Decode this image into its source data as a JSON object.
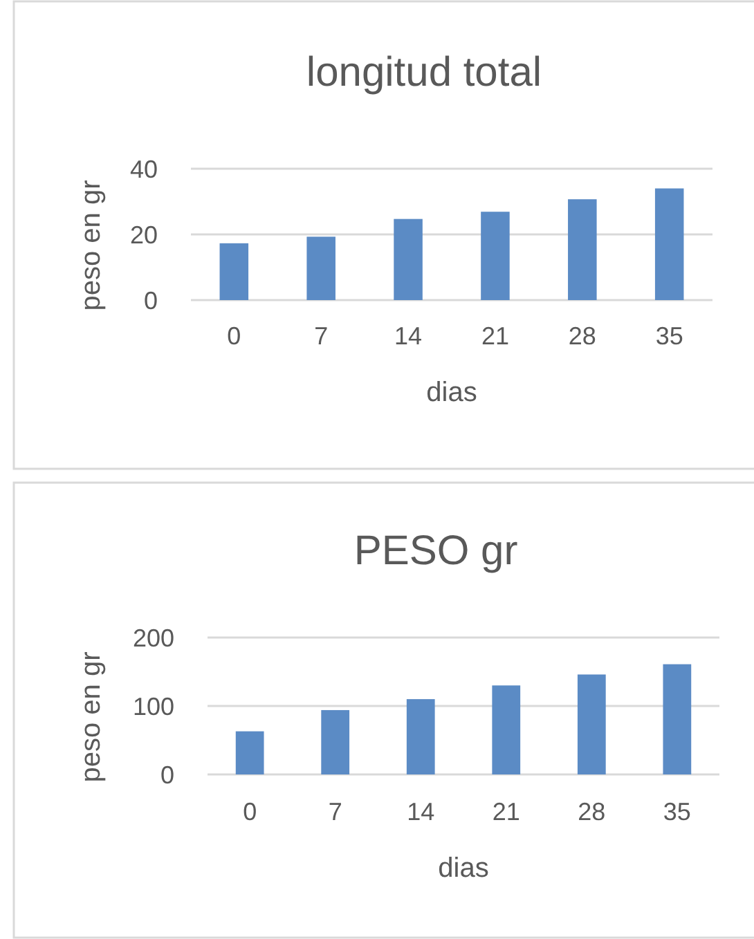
{
  "chart_data": [
    {
      "type": "bar",
      "title": "longitud total",
      "xlabel": "dias",
      "ylabel": "peso en gr",
      "categories": [
        "0",
        "7",
        "14",
        "21",
        "28",
        "35"
      ],
      "values": [
        17.3,
        19.3,
        24.7,
        26.9,
        30.7,
        34.0
      ],
      "color": "#5b8bc5",
      "ylim": [
        0,
        40
      ],
      "yticks": [
        0,
        20,
        40
      ],
      "grid": "y"
    },
    {
      "type": "bar",
      "title": "PESO gr",
      "xlabel": "dias",
      "ylabel": "peso en gr",
      "categories": [
        "0",
        "7",
        "14",
        "21",
        "28",
        "35"
      ],
      "values": [
        63,
        94,
        110,
        130,
        146,
        161
      ],
      "color": "#5b8bc5",
      "ylim": [
        0,
        200
      ],
      "yticks": [
        0,
        100,
        200
      ],
      "grid": "y"
    }
  ]
}
